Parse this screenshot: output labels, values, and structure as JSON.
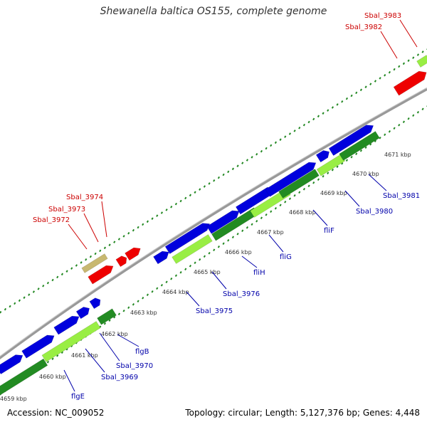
{
  "title": "Shewanella baltica OS155, complete genome",
  "footer": {
    "accession": "Accession: NC_009052",
    "summary": "Topology: circular; Length: 5,127,376 bp; Genes: 4,448"
  },
  "colors": {
    "backbone": "#888888",
    "tick": "#228822",
    "forward_gene": "#0000dd",
    "reverse_gene": "#ee0000",
    "cds_dark": "#228b22",
    "cds_light": "#99ee44",
    "label_forward": "#0000aa",
    "label_reverse": "#cc0000"
  },
  "kbp_ticks": [
    "4659 kbp",
    "4660 kbp",
    "4661 kbp",
    "4662 kbp",
    "4663 kbp",
    "4664 kbp",
    "4665 kbp",
    "4666 kbp",
    "4667 kbp",
    "4668 kbp",
    "4669 kbp",
    "4670 kbp",
    "4671 kbp"
  ],
  "forward_labels": [
    "flgE",
    "Sbal_3969",
    "Sbal_3970",
    "flgB",
    "Sbal_3975",
    "Sbal_3976",
    "fliH",
    "fliG",
    "fliF",
    "Sbal_3980",
    "Sbal_3981"
  ],
  "reverse_labels": [
    "Sbal_3972",
    "Sbal_3973",
    "Sbal_3974",
    "Sbal_3982",
    "Sbal_3983"
  ]
}
